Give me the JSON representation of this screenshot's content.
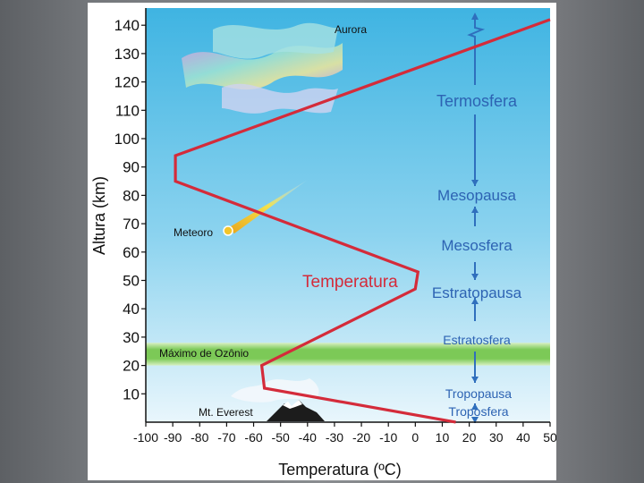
{
  "chart_data": {
    "type": "line",
    "title": "",
    "xlabel": "Temperatura (ºC)",
    "ylabel": "Altura (km)",
    "xlim": [
      -100,
      50
    ],
    "ylim": [
      0,
      145
    ],
    "x_ticks": [
      "-100",
      "-90",
      "-80",
      "-70",
      "-60",
      "-50",
      "-40",
      "-30",
      "-20",
      "-10",
      "0",
      "10",
      "20",
      "30",
      "40",
      "50"
    ],
    "y_ticks": [
      "10",
      "20",
      "30",
      "40",
      "50",
      "60",
      "70",
      "80",
      "90",
      "100",
      "110",
      "120",
      "130",
      "140"
    ],
    "series": [
      {
        "name": "Temperatura",
        "color": "#d42b3a",
        "x": [
          15,
          -56,
          -57,
          0,
          1,
          -89,
          -89,
          50
        ],
        "y": [
          0,
          12,
          20,
          47,
          53,
          85,
          94,
          142
        ]
      }
    ],
    "ozone_band": {
      "label": "Máximo de Ozônio",
      "y_range": [
        20,
        28
      ],
      "color": "#7cc957"
    },
    "layers": [
      {
        "label": "Termosfera",
        "altitude": 113
      },
      {
        "label": "Mesopausa",
        "altitude": 80
      },
      {
        "label": "Mesosfera",
        "altitude": 66
      },
      {
        "label": "Estratopausa",
        "altitude": 48
      },
      {
        "label": "Estratosfera",
        "altitude": 29
      },
      {
        "label": "Tropopausa",
        "altitude": 10
      },
      {
        "label": "Troposfera",
        "altitude": 3
      }
    ],
    "annotations": [
      {
        "label": "Aurora",
        "altitude": 133
      },
      {
        "label": "Meteoro",
        "altitude": 68
      },
      {
        "label": "Mt. Everest",
        "altitude": 9
      },
      {
        "label": "Temperatura",
        "altitude": 49
      }
    ]
  }
}
